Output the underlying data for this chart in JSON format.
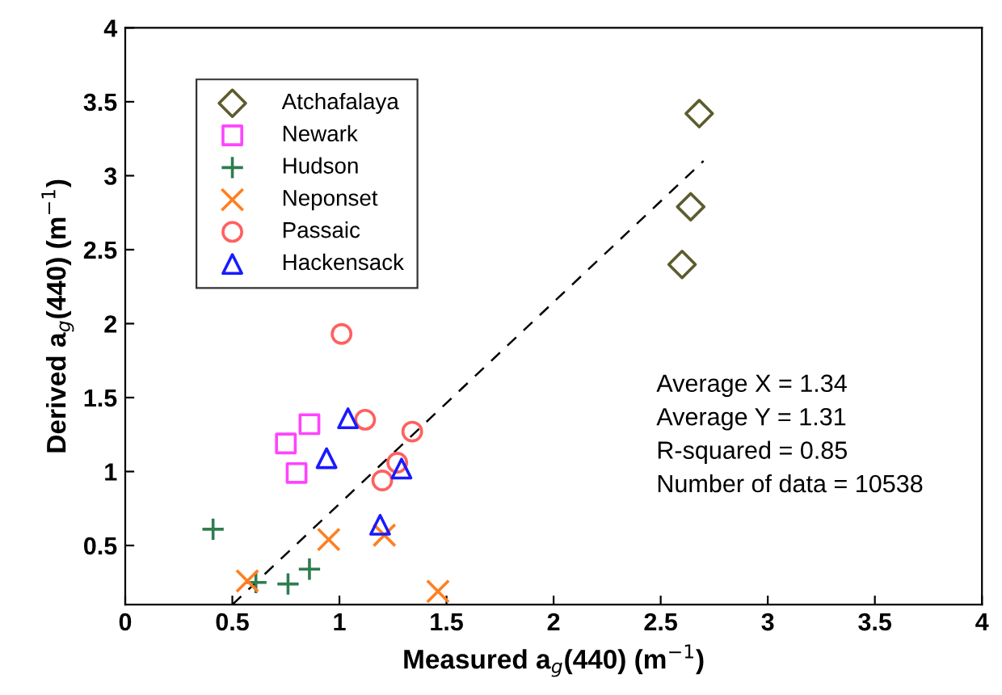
{
  "chart_data": {
    "type": "scatter",
    "xlabel": "Measured a$_{g}$(440) (m$^{−1}$)",
    "ylabel": "Derived a$_{g}$(440) (m$^{−1}$)",
    "xlim": [
      0,
      4
    ],
    "ylim": [
      0.1,
      4
    ],
    "xticks": [
      0,
      0.5,
      1,
      1.5,
      2,
      2.5,
      3,
      3.5,
      4
    ],
    "yticks": [
      0.5,
      1,
      1.5,
      2,
      2.5,
      3,
      3.5,
      4
    ],
    "grid": false,
    "legend": "top left",
    "series": [
      {
        "name": "Atchafalaya",
        "color": "#5c5c2e",
        "marker": "diamond",
        "x": [
          2.68,
          2.64,
          2.6
        ],
        "values": [
          3.42,
          2.79,
          2.4
        ]
      },
      {
        "name": "Newark",
        "color": "#ff44ff",
        "marker": "square",
        "x": [
          0.86,
          0.75,
          0.8
        ],
        "values": [
          1.32,
          1.19,
          0.99
        ]
      },
      {
        "name": "Hudson",
        "color": "#2e7d4f",
        "marker": "plus",
        "x": [
          0.41,
          0.61,
          0.76,
          0.86
        ],
        "values": [
          0.61,
          0.25,
          0.24,
          0.34
        ]
      },
      {
        "name": "Neponset",
        "color": "#ff7f1f",
        "marker": "cross",
        "x": [
          0.57,
          0.95,
          1.21,
          1.46
        ],
        "values": [
          0.26,
          0.54,
          0.57,
          0.19
        ]
      },
      {
        "name": "Passaic",
        "color": "#ff6060",
        "marker": "circle",
        "x": [
          1.01,
          1.12,
          1.34,
          1.27,
          1.2
        ],
        "values": [
          1.93,
          1.35,
          1.27,
          1.06,
          0.94
        ]
      },
      {
        "name": "Hackensack",
        "color": "#1a1aff",
        "marker": "triangle",
        "x": [
          1.04,
          0.94,
          1.29,
          1.19
        ],
        "values": [
          1.36,
          1.09,
          1.02,
          0.64
        ]
      },
      {
        "type": "line",
        "color": "#000000",
        "line_style": "dashed",
        "marker": "none",
        "x": [
          0.5,
          2.7
        ],
        "values": [
          0.1,
          3.1
        ]
      }
    ],
    "annotations": [
      "Average X = 1.34",
      "Average Y = 1.31",
      "R-squared = 0.85",
      "Number of data = 10538"
    ]
  }
}
